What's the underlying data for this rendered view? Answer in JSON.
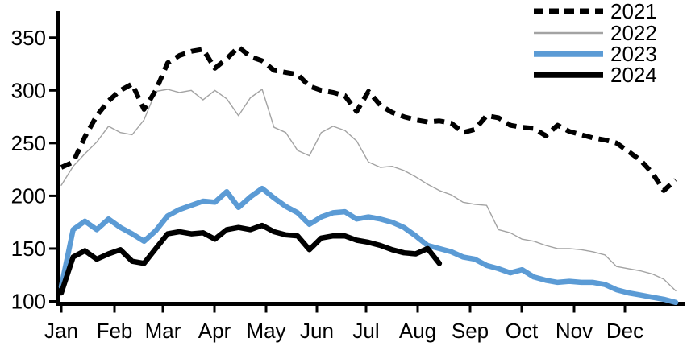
{
  "chart_data": {
    "type": "line",
    "title": "",
    "xlabel": "",
    "ylabel": "",
    "x_labels": [
      "Jan",
      "Feb",
      "Mar",
      "Apr",
      "May",
      "Jun",
      "Jul",
      "Aug",
      "Sep",
      "Oct",
      "Nov",
      "Dec"
    ],
    "y_ticks": [
      100,
      150,
      200,
      250,
      300,
      350
    ],
    "ylim": [
      100,
      375
    ],
    "x_unit": "weekly",
    "grid": false,
    "legend_position": "top-right",
    "background": "#FFFFFF",
    "axis_color": "#000000",
    "series": [
      {
        "name": "2021",
        "color": "#000000",
        "style": "dashed",
        "width": 6,
        "values": [
          227,
          232,
          256,
          276,
          290,
          300,
          306,
          282,
          300,
          326,
          333,
          337,
          339,
          321,
          330,
          341,
          332,
          328,
          319,
          317,
          315,
          304,
          300,
          298,
          295,
          280,
          299,
          286,
          279,
          275,
          272,
          270,
          271,
          269,
          260,
          263,
          276,
          274,
          267,
          265,
          264,
          257,
          267,
          261,
          258,
          255,
          253,
          250,
          242,
          234,
          222,
          205,
          215
        ]
      },
      {
        "name": "2022",
        "color": "#A3A3A3",
        "style": "solid",
        "width": 1.4,
        "values": [
          210,
          228,
          240,
          251,
          266,
          260,
          258,
          272,
          299,
          301,
          298,
          300,
          291,
          300,
          292,
          276,
          293,
          301,
          265,
          260,
          243,
          238,
          260,
          266,
          262,
          252,
          232,
          227,
          228,
          224,
          218,
          211,
          205,
          201,
          194,
          192,
          191,
          168,
          165,
          159,
          157,
          153,
          150,
          150,
          149,
          147,
          144,
          133,
          131,
          129,
          126,
          121,
          110
        ]
      },
      {
        "name": "2023",
        "color": "#5B9BD5",
        "style": "solid",
        "width": 6.5,
        "values": [
          114,
          168,
          176,
          168,
          178,
          170,
          164,
          157,
          167,
          181,
          187,
          191,
          195,
          194,
          204,
          189,
          199,
          207,
          198,
          190,
          184,
          173,
          180,
          184,
          185,
          178,
          180,
          178,
          175,
          170,
          162,
          153,
          150,
          147,
          142,
          140,
          134,
          131,
          127,
          130,
          123,
          120,
          118,
          119,
          118,
          118,
          116,
          111,
          108,
          106,
          104,
          102,
          99
        ]
      },
      {
        "name": "2024",
        "color": "#000000",
        "style": "solid",
        "width": 6.5,
        "values": [
          108,
          142,
          148,
          140,
          145,
          149,
          138,
          136,
          150,
          164,
          166,
          164,
          165,
          159,
          168,
          170,
          168,
          172,
          166,
          163,
          162,
          149,
          160,
          162,
          162,
          158,
          156,
          153,
          149,
          146,
          145,
          150,
          136
        ]
      }
    ]
  }
}
